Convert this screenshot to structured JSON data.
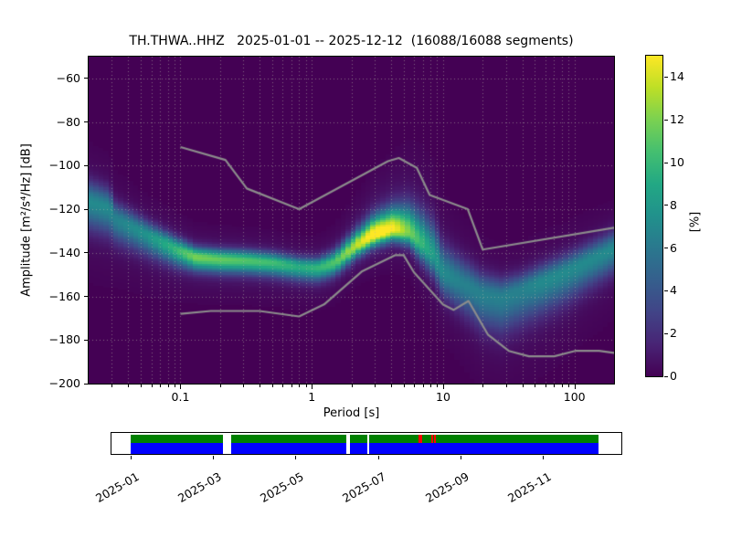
{
  "title": "TH.THWA..HHZ   2025-01-01 -- 2025-12-12  (16088/16088 segments)",
  "chart_data": {
    "type": "heatmap",
    "title": "TH.THWA..HHZ   2025-01-01 -- 2025-12-12  (16088/16088 segments)",
    "station": "TH.THWA..HHZ",
    "date_range": "2025-01-01 -- 2025-12-12",
    "segments": "16088/16088 segments",
    "xlabel": "Period [s]",
    "ylabel": "Amplitude [m²/s⁴/Hz] [dB]",
    "colorbar_label": "[%]",
    "x_scale": "log",
    "xlim": [
      0.02,
      200
    ],
    "ylim": [
      -200,
      -50
    ],
    "clim": [
      0,
      15
    ],
    "grid": true,
    "x_ticks": [
      0.1,
      1,
      10,
      100
    ],
    "x_tick_labels": [
      "0.1",
      "1",
      "10",
      "100"
    ],
    "y_ticks": [
      -60,
      -80,
      -100,
      -120,
      -140,
      -160,
      -180,
      -200
    ],
    "y_tick_labels": [
      "−60",
      "−80",
      "−100",
      "−120",
      "−140",
      "−160",
      "−180",
      "−200"
    ],
    "colorbar_ticks": [
      0,
      2,
      4,
      6,
      8,
      10,
      12,
      14
    ],
    "colorbar_tick_labels": [
      "0",
      "2",
      "4",
      "6",
      "8",
      "10",
      "12",
      "14"
    ],
    "colormap": "viridis",
    "colormap_stops": [
      [
        0.0,
        "#440154"
      ],
      [
        0.1,
        "#482475"
      ],
      [
        0.2,
        "#414487"
      ],
      [
        0.3,
        "#355f8d"
      ],
      [
        0.4,
        "#2a788e"
      ],
      [
        0.5,
        "#21918c"
      ],
      [
        0.6,
        "#22a884"
      ],
      [
        0.7,
        "#44bf70"
      ],
      [
        0.8,
        "#7ad151"
      ],
      [
        0.9,
        "#bddf26"
      ],
      [
        1.0,
        "#fde725"
      ]
    ],
    "background_color": "#440154",
    "noise_model_color": "#8c8c8c",
    "grid_color": "rgba(180,185,170,0.55)",
    "noise_models": {
      "nhnm": [
        [
          0.1,
          -91.5
        ],
        [
          0.22,
          -97.4
        ],
        [
          0.32,
          -110.5
        ],
        [
          0.8,
          -120.0
        ],
        [
          3.8,
          -98.0
        ],
        [
          4.6,
          -96.5
        ],
        [
          6.3,
          -101.0
        ],
        [
          7.9,
          -113.5
        ],
        [
          15.4,
          -120.0
        ],
        [
          20,
          -138.5
        ],
        [
          200,
          -128.5
        ]
      ],
      "nlnm": [
        [
          0.1,
          -168.0
        ],
        [
          0.17,
          -166.7
        ],
        [
          0.4,
          -166.7
        ],
        [
          0.8,
          -169.2
        ],
        [
          1.24,
          -163.7
        ],
        [
          2.4,
          -148.6
        ],
        [
          4.3,
          -141.1
        ],
        [
          5.0,
          -141.1
        ],
        [
          6.0,
          -149.0
        ],
        [
          10.0,
          -163.8
        ],
        [
          12.0,
          -166.2
        ],
        [
          15.6,
          -162.1
        ],
        [
          21.9,
          -177.5
        ],
        [
          31.6,
          -185.0
        ],
        [
          45,
          -187.5
        ],
        [
          70,
          -187.5
        ],
        [
          101,
          -185.0
        ],
        [
          154,
          -185.0
        ],
        [
          200,
          -185.9
        ]
      ]
    },
    "ppsd_ridge": {
      "description": "Mode of the PPSD probability distribution vs period; peak probability [%] and gaussian spread [dB] above/below the mode.",
      "period_s": [
        0.02,
        0.029,
        0.031,
        0.055,
        0.09,
        0.13,
        0.2,
        0.32,
        0.5,
        0.8,
        1.1,
        1.5,
        2.2,
        3.0,
        4.2,
        5.5,
        7.0,
        8.5,
        10.0,
        14.0,
        20.0,
        28.0,
        40.0,
        55.0,
        80.0,
        120.0,
        200.0
      ],
      "mode_db": [
        -116.5,
        -119.5,
        -124.0,
        -131.5,
        -138.0,
        -142.0,
        -143.0,
        -143.5,
        -144.5,
        -146.5,
        -147.0,
        -144.5,
        -136.5,
        -131.5,
        -129.0,
        -130.5,
        -136.0,
        -141.0,
        -149.0,
        -154.0,
        -159.0,
        -160.5,
        -157.0,
        -153.5,
        -149.5,
        -144.5,
        -138.0
      ],
      "peak_percent": [
        6.5,
        6.5,
        6.0,
        7.0,
        9.0,
        11.0,
        10.5,
        10.0,
        9.5,
        8.5,
        9.0,
        10.0,
        12.5,
        15.0,
        14.0,
        11.0,
        9.0,
        7.5,
        6.5,
        6.0,
        6.0,
        6.0,
        6.0,
        6.5,
        6.5,
        6.5,
        6.5
      ],
      "sigma_up_db": [
        6.0,
        5.5,
        5.0,
        4.0,
        3.5,
        3.0,
        3.0,
        3.0,
        3.0,
        3.0,
        3.0,
        3.5,
        4.5,
        5.5,
        6.5,
        8.0,
        9.0,
        9.0,
        8.0,
        7.0,
        6.0,
        5.5,
        5.0,
        5.0,
        5.0,
        5.0,
        5.0
      ],
      "sigma_down_db": [
        8.0,
        8.0,
        7.0,
        6.0,
        5.0,
        4.0,
        4.0,
        4.0,
        4.0,
        4.0,
        4.0,
        3.8,
        3.5,
        3.5,
        3.5,
        4.0,
        5.5,
        6.5,
        7.0,
        8.5,
        10.0,
        10.5,
        10.0,
        9.5,
        9.0,
        8.0,
        7.0
      ]
    },
    "bin_quantization": {
      "log10_period_step": 0.037629,
      "db_step": 1.0
    }
  },
  "coverage_timeline": {
    "start_date": "2025-01-01",
    "end_date": "2025-12-12",
    "total_months": 11.35,
    "tick_months": [
      0,
      2,
      4,
      6,
      8,
      10
    ],
    "tick_labels": [
      "2025-01",
      "2025-03",
      "2025-05",
      "2025-07",
      "2025-09",
      "2025-11"
    ],
    "row_colors": {
      "data_row": "#008000",
      "psd_row": "#0000ff",
      "gap_marker": "#ff0000"
    },
    "gaps_frac": [
      [
        0.1976,
        0.0168
      ],
      [
        0.4614,
        0.0072
      ],
      [
        0.5056,
        0.0039
      ]
    ],
    "red_marks_frac": [
      [
        0.6156,
        0.0066
      ],
      [
        0.6418,
        0.0045
      ],
      [
        0.6482,
        0.0033
      ]
    ]
  }
}
